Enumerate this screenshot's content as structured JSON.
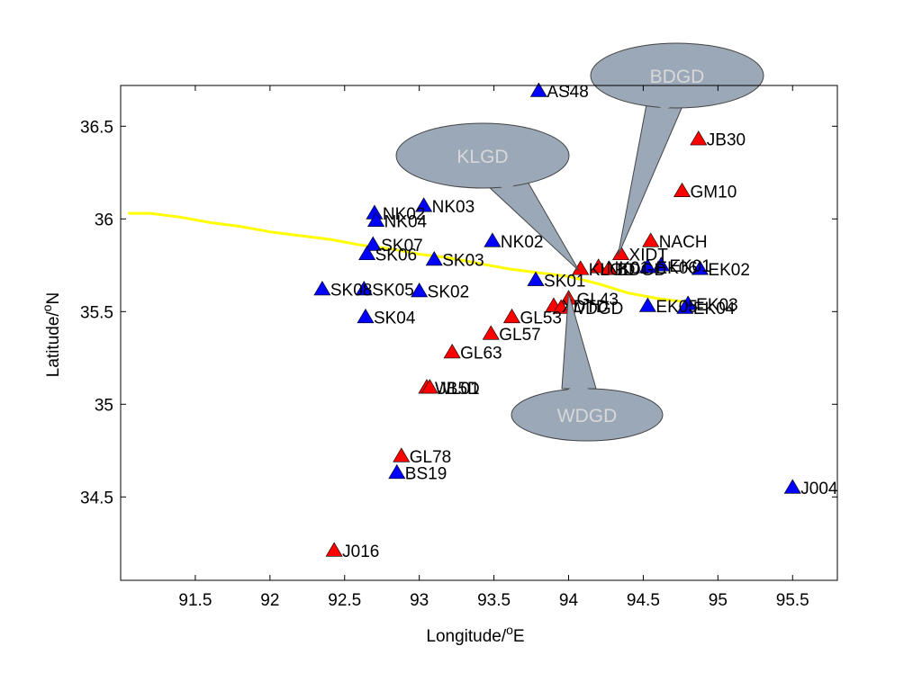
{
  "chart_data": {
    "type": "scatter",
    "xlabel": "Longitude/",
    "xlabel_sup": "o",
    "xlabel_suffix": "E",
    "ylabel": "Latitude/",
    "ylabel_sup": "o",
    "ylabel_suffix": "N",
    "xlim": [
      91.0,
      95.8
    ],
    "ylim": [
      34.05,
      36.72
    ],
    "x_ticks": [
      91.5,
      92,
      92.5,
      93,
      93.5,
      94,
      94.5,
      95,
      95.5
    ],
    "x_tick_labels": [
      "91.5",
      "92",
      "92.5",
      "93",
      "93.5",
      "94",
      "94.5",
      "95",
      "95.5"
    ],
    "y_ticks": [
      34.5,
      35,
      35.5,
      36,
      36.5
    ],
    "y_tick_labels": [
      "34.5",
      "35",
      "35.5",
      "36",
      "36.5"
    ],
    "grid": false,
    "legend": "none",
    "colors": {
      "blue_marker": "#0000ff",
      "red_marker": "#ff0000",
      "fault_line": "#ffff00",
      "callout_fill": "#9aa8b8",
      "callout_text": "#d8d8d8"
    },
    "series": [
      {
        "marker_color": "blue",
        "points": [
          {
            "label": "AS48",
            "x": 93.8,
            "y": 36.69
          },
          {
            "label": "NK03",
            "x": 93.03,
            "y": 36.07
          },
          {
            "label": "NK02",
            "x": 92.7,
            "y": 36.03
          },
          {
            "label": "NK04",
            "x": 92.71,
            "y": 35.99
          },
          {
            "label": "NK02",
            "x": 93.49,
            "y": 35.88
          },
          {
            "label": "SK07",
            "x": 92.69,
            "y": 35.86
          },
          {
            "label": "SK06",
            "x": 92.65,
            "y": 35.81
          },
          {
            "label": "SK03",
            "x": 93.1,
            "y": 35.78
          },
          {
            "label": "SK01",
            "x": 93.78,
            "y": 35.67
          },
          {
            "label": "SK08",
            "x": 92.35,
            "y": 35.62
          },
          {
            "label": "SK05",
            "x": 92.63,
            "y": 35.62
          },
          {
            "label": "SK02",
            "x": 93.0,
            "y": 35.61
          },
          {
            "label": "SK04",
            "x": 92.64,
            "y": 35.47
          },
          {
            "label": "EK01",
            "x": 94.62,
            "y": 35.75
          },
          {
            "label": "EK06",
            "x": 94.53,
            "y": 35.74
          },
          {
            "label": "EK02",
            "x": 94.88,
            "y": 35.73
          },
          {
            "label": "EK03",
            "x": 94.8,
            "y": 35.54
          },
          {
            "label": "EK05",
            "x": 94.53,
            "y": 35.53
          },
          {
            "label": "EK04",
            "x": 94.78,
            "y": 35.52
          },
          {
            "label": "BS19",
            "x": 92.85,
            "y": 34.63
          },
          {
            "label": "J004",
            "x": 95.5,
            "y": 34.55
          }
        ]
      },
      {
        "marker_color": "red",
        "points": [
          {
            "label": "JB30",
            "x": 94.87,
            "y": 36.43
          },
          {
            "label": "GM10",
            "x": 94.76,
            "y": 36.15
          },
          {
            "label": "NACH",
            "x": 94.55,
            "y": 35.88
          },
          {
            "label": "XIDT",
            "x": 94.35,
            "y": 35.81
          },
          {
            "label": "NK01",
            "x": 94.2,
            "y": 35.74
          },
          {
            "label": "KLGD",
            "x": 94.08,
            "y": 35.73
          },
          {
            "label": "BDGD",
            "x": 94.27,
            "y": 35.73
          },
          {
            "label": "GL43",
            "x": 94.0,
            "y": 35.57
          },
          {
            "label": "XDTD",
            "x": 93.9,
            "y": 35.53
          },
          {
            "label": "WDGD",
            "x": 93.95,
            "y": 35.52
          },
          {
            "label": "GL53",
            "x": 93.62,
            "y": 35.47
          },
          {
            "label": "GL57",
            "x": 93.48,
            "y": 35.38
          },
          {
            "label": "GL63",
            "x": 93.22,
            "y": 35.28
          },
          {
            "label": "WL01",
            "x": 93.05,
            "y": 35.09
          },
          {
            "label": "JB5D",
            "x": 93.07,
            "y": 35.09
          },
          {
            "label": "GL78",
            "x": 92.88,
            "y": 34.72
          },
          {
            "label": "J016",
            "x": 92.43,
            "y": 34.21
          }
        ]
      }
    ],
    "fault_line": [
      [
        91.05,
        36.03
      ],
      [
        91.2,
        36.03
      ],
      [
        91.4,
        36.01
      ],
      [
        91.6,
        35.98
      ],
      [
        91.8,
        35.96
      ],
      [
        92.0,
        35.93
      ],
      [
        92.2,
        35.91
      ],
      [
        92.4,
        35.89
      ],
      [
        92.6,
        35.86
      ],
      [
        92.8,
        35.84
      ],
      [
        93.0,
        35.81
      ],
      [
        93.2,
        35.79
      ],
      [
        93.4,
        35.76
      ],
      [
        93.6,
        35.73
      ],
      [
        93.8,
        35.71
      ],
      [
        94.0,
        35.69
      ],
      [
        94.2,
        35.65
      ],
      [
        94.4,
        35.6
      ],
      [
        94.6,
        35.57
      ],
      [
        94.8,
        35.55
      ]
    ],
    "callouts": [
      {
        "label": "BDGD",
        "points_to": [
          94.33,
          35.8
        ]
      },
      {
        "label": "KLGD",
        "points_to": [
          94.07,
          35.72
        ]
      },
      {
        "label": "WDGD",
        "points_to": [
          94.0,
          35.6
        ]
      }
    ]
  }
}
